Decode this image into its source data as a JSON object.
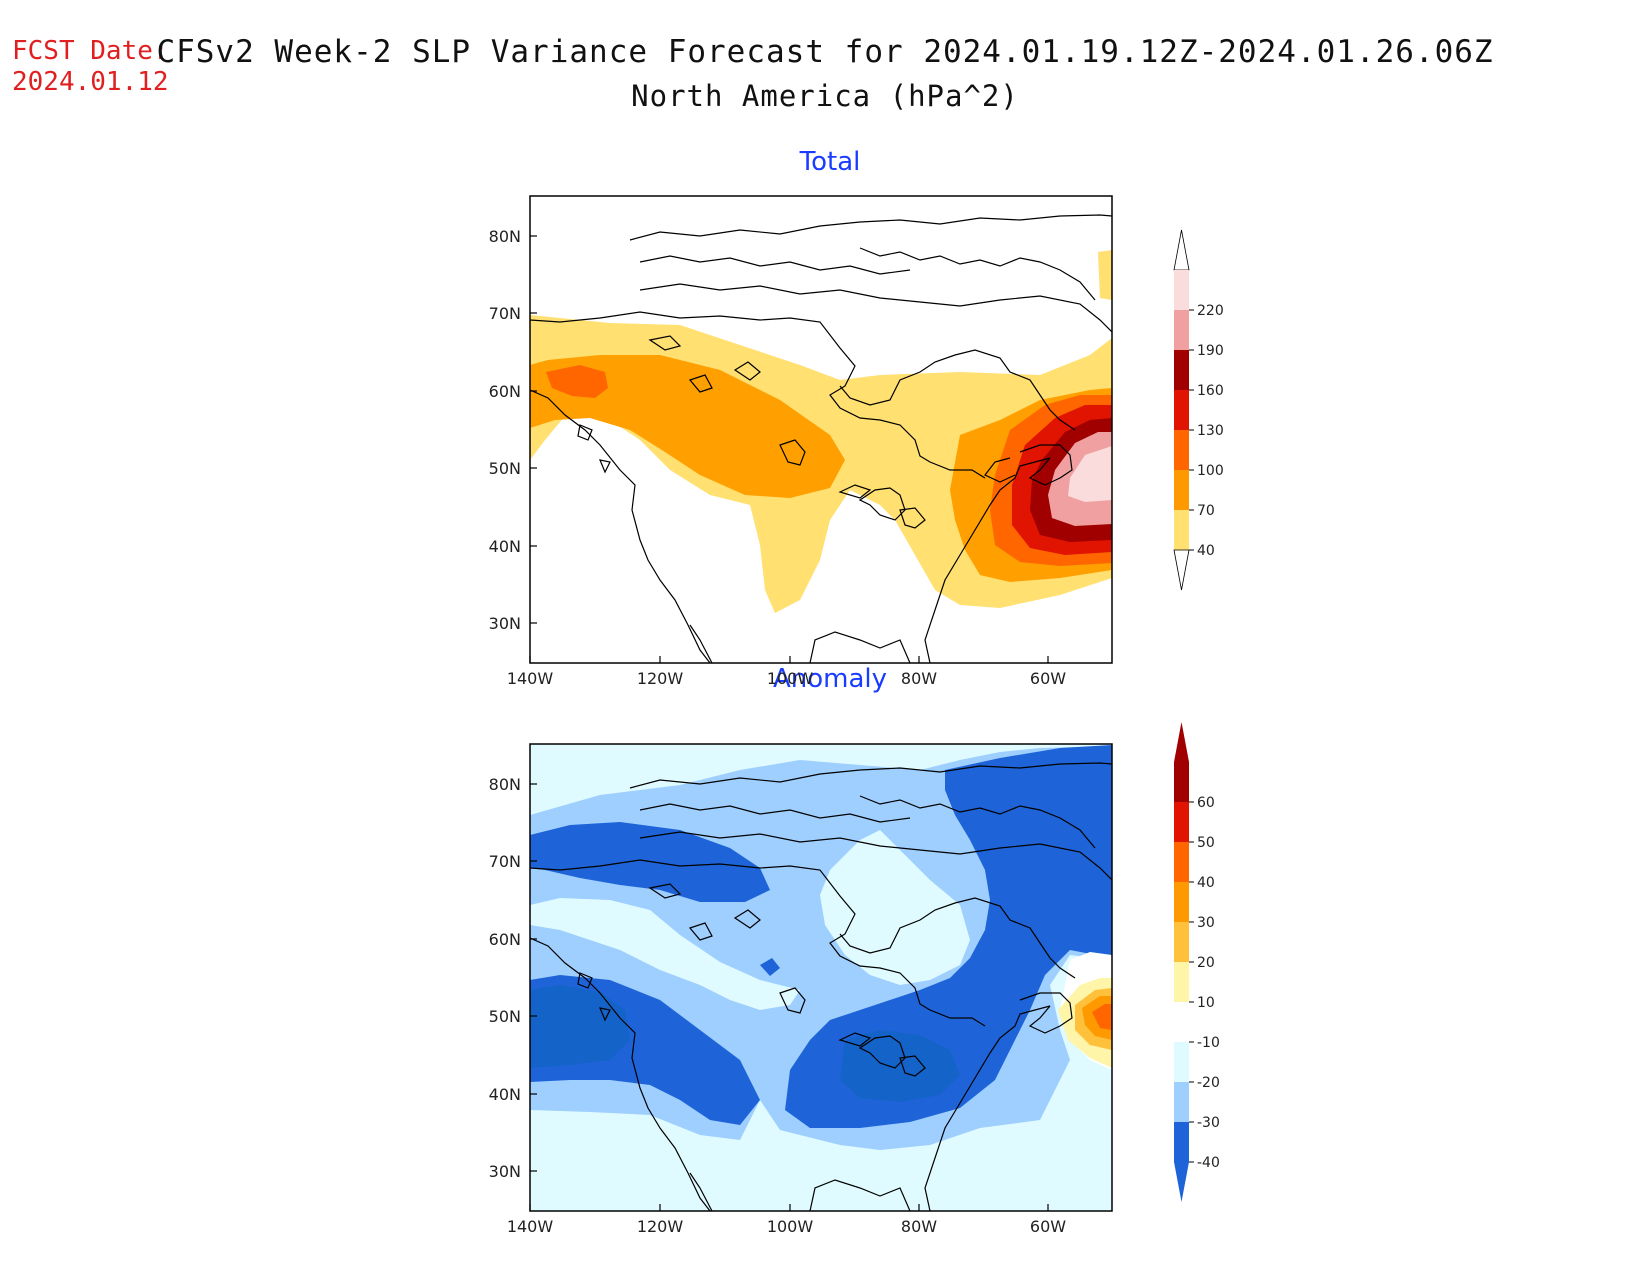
{
  "header": {
    "fcst_label": "FCST Date:",
    "fcst_date": "2024.01.12",
    "title_line1": "CFSv2 Week-2 SLP Variance Forecast for 2024.01.19.12Z-2024.01.26.06Z",
    "title_line2": "North America (hPa^2)"
  },
  "axes": {
    "lat_labels": [
      "80N",
      "70N",
      "60N",
      "50N",
      "40N",
      "30N"
    ],
    "lon_labels": [
      "140W",
      "120W",
      "100W",
      "80W",
      "60W"
    ]
  },
  "panels": [
    {
      "title": "Total",
      "colorbar": {
        "labels": [
          "220",
          "190",
          "160",
          "130",
          "100",
          "70",
          "40"
        ],
        "colors": [
          "#fbdcdc",
          "#f0a0a0",
          "#a00000",
          "#e01400",
          "#ff6600",
          "#ff9900",
          "#ffe070"
        ]
      }
    },
    {
      "title": "Anomaly",
      "colorbar": {
        "labels": [
          "60",
          "50",
          "40",
          "30",
          "20",
          "10",
          "-10",
          "-20",
          "-30",
          "-40"
        ],
        "colors": [
          "#a00000",
          "#e01400",
          "#ff6600",
          "#ff9900",
          "#ffc03c",
          "#fff5a8",
          "#ffffff",
          "#e0fbff",
          "#9ecfff",
          "#1e64d8"
        ]
      }
    }
  ]
}
